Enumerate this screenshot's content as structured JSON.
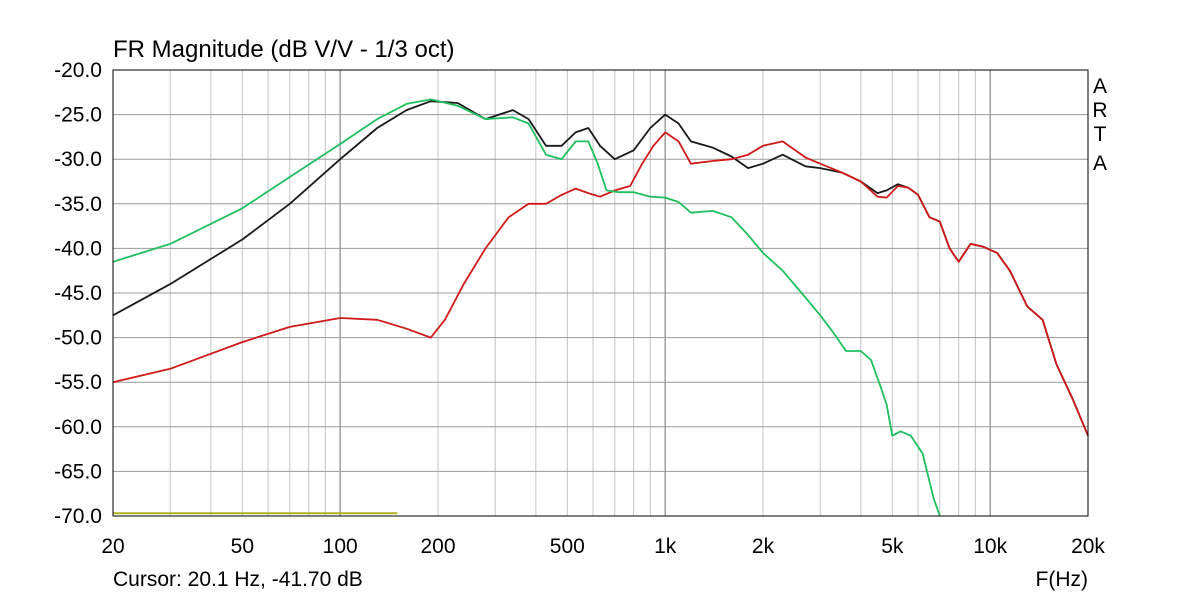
{
  "chart_data": {
    "type": "line",
    "title": "FR Magnitude (dB V/V - 1/3 oct)",
    "xlabel": "F(Hz)",
    "ylabel": "",
    "x_scale": "log",
    "xlim": [
      20,
      20000
    ],
    "ylim": [
      -70,
      -20
    ],
    "grid": true,
    "x_ticks": [
      {
        "value": 20,
        "label": "20"
      },
      {
        "value": 50,
        "label": "50"
      },
      {
        "value": 100,
        "label": "100"
      },
      {
        "value": 200,
        "label": "200"
      },
      {
        "value": 500,
        "label": "500"
      },
      {
        "value": 1000,
        "label": "1k"
      },
      {
        "value": 2000,
        "label": "2k"
      },
      {
        "value": 5000,
        "label": "5k"
      },
      {
        "value": 10000,
        "label": "10k"
      },
      {
        "value": 20000,
        "label": "20k"
      }
    ],
    "y_ticks": [
      {
        "value": -20,
        "label": "-20.0"
      },
      {
        "value": -25,
        "label": "-25.0"
      },
      {
        "value": -30,
        "label": "-30.0"
      },
      {
        "value": -35,
        "label": "-35.0"
      },
      {
        "value": -40,
        "label": "-40.0"
      },
      {
        "value": -45,
        "label": "-45.0"
      },
      {
        "value": -50,
        "label": "-50.0"
      },
      {
        "value": -55,
        "label": "-55.0"
      },
      {
        "value": -60,
        "label": "-60.0"
      },
      {
        "value": -65,
        "label": "-65.0"
      },
      {
        "value": -70,
        "label": "-70.0"
      }
    ],
    "series": [
      {
        "color": "#1a1a1a",
        "x": [
          20,
          30,
          50,
          70,
          100,
          130,
          160,
          190,
          230,
          280,
          340,
          380,
          430,
          480,
          530,
          580,
          630,
          700,
          800,
          900,
          1000,
          1100,
          1200,
          1400,
          1600,
          1800,
          2000,
          2300,
          2700,
          3000,
          3500,
          4000,
          4500,
          4800,
          5200,
          5600,
          6000,
          6500,
          7000,
          7500,
          8000,
          8700,
          9500,
          10500,
          11500,
          13000,
          14500,
          16000,
          18000,
          20000
        ],
        "y": [
          -47.5,
          -44.0,
          -39.0,
          -35.0,
          -30.0,
          -26.5,
          -24.5,
          -23.5,
          -23.7,
          -25.5,
          -24.5,
          -25.5,
          -28.5,
          -28.5,
          -27.0,
          -26.5,
          -28.5,
          -30.0,
          -29.0,
          -26.5,
          -25.0,
          -26.0,
          -28.0,
          -28.7,
          -29.7,
          -31.0,
          -30.5,
          -29.5,
          -30.8,
          -31.0,
          -31.5,
          -32.5,
          -33.8,
          -33.5,
          -32.8,
          -33.2,
          -34.0,
          -36.5,
          -37.0,
          -40.0,
          -41.5,
          -39.5,
          -39.8,
          -40.5,
          -42.5,
          -46.5,
          -48.0,
          -53.0,
          -57.0,
          -61.0
        ]
      },
      {
        "color": "#d01a1a",
        "x": [
          20,
          30,
          50,
          70,
          100,
          130,
          160,
          190,
          210,
          240,
          280,
          330,
          380,
          430,
          480,
          530,
          580,
          630,
          700,
          780,
          850,
          920,
          1000,
          1100,
          1200,
          1400,
          1600,
          1800,
          2000,
          2300,
          2700,
          3000,
          3500,
          4000,
          4500,
          4800,
          5200,
          5600,
          6000,
          6500,
          7000,
          7500,
          8000,
          8700,
          9500,
          10500,
          11500,
          13000,
          14500,
          16000,
          18000,
          20000
        ],
        "y": [
          -55.0,
          -53.5,
          -50.5,
          -48.8,
          -47.8,
          -48.0,
          -49.0,
          -50.0,
          -48.0,
          -44.0,
          -40.0,
          -36.5,
          -35.0,
          -35.0,
          -34.0,
          -33.3,
          -33.8,
          -34.2,
          -33.5,
          -33.0,
          -30.5,
          -28.5,
          -27.0,
          -28.0,
          -30.5,
          -30.2,
          -30.0,
          -29.5,
          -28.5,
          -28.0,
          -29.8,
          -30.5,
          -31.5,
          -32.5,
          -34.2,
          -34.3,
          -33.0,
          -33.2,
          -34.0,
          -36.5,
          -37.0,
          -40.0,
          -41.5,
          -39.5,
          -39.8,
          -40.5,
          -42.5,
          -46.5,
          -48.0,
          -53.0,
          -57.0,
          -61.0
        ]
      },
      {
        "color": "#1fbf5f",
        "x": [
          20,
          30,
          50,
          70,
          100,
          130,
          160,
          190,
          230,
          280,
          340,
          380,
          430,
          480,
          530,
          580,
          620,
          660,
          720,
          800,
          900,
          1000,
          1100,
          1200,
          1400,
          1600,
          1800,
          2000,
          2300,
          2700,
          3000,
          3300,
          3600,
          4000,
          4300,
          4600,
          4800,
          5000,
          5300,
          5700,
          6200,
          6700,
          7000
        ],
        "y": [
          -41.5,
          -39.5,
          -35.5,
          -32.0,
          -28.3,
          -25.5,
          -23.8,
          -23.3,
          -24.0,
          -25.5,
          -25.3,
          -26.0,
          -29.5,
          -30.0,
          -28.0,
          -28.0,
          -30.5,
          -33.5,
          -33.7,
          -33.7,
          -34.2,
          -34.3,
          -34.8,
          -36.0,
          -35.8,
          -36.5,
          -38.5,
          -40.5,
          -42.5,
          -45.5,
          -47.5,
          -49.5,
          -51.5,
          -51.5,
          -52.5,
          -55.5,
          -57.5,
          -61.0,
          -60.5,
          -61.0,
          -63.0,
          -68.0,
          -70.0
        ]
      },
      {
        "color": "#b0b020",
        "x": [
          20,
          150
        ],
        "y": [
          -69.7,
          -69.7
        ]
      }
    ]
  },
  "cursor_text": "Cursor: 20.1 Hz, -41.70 dB",
  "brand_letters": [
    "A",
    "R",
    "T",
    "A"
  ]
}
